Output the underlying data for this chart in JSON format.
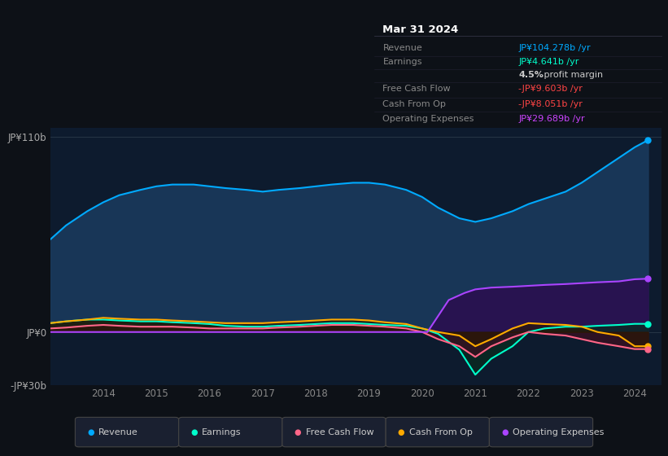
{
  "background_color": "#0d1117",
  "plot_bg_color": "#0d1b2e",
  "title_box": {
    "date": "Mar 31 2024",
    "rows": [
      {
        "label": "Revenue",
        "value": "JP¥104.278b /yr",
        "value_color": "#00aaff"
      },
      {
        "label": "Earnings",
        "value": "JP¥4.641b /yr",
        "value_color": "#00ffcc"
      },
      {
        "label": "",
        "value": "4.5% profit margin",
        "value_color": "#cccccc",
        "bold_prefix": "4.5%"
      },
      {
        "label": "Free Cash Flow",
        "value": "-JP¥9.603b /yr",
        "value_color": "#ff4444"
      },
      {
        "label": "Cash From Op",
        "value": "-JP¥8.051b /yr",
        "value_color": "#ff4444"
      },
      {
        "label": "Operating Expenses",
        "value": "JP¥29.689b /yr",
        "value_color": "#cc44ff"
      }
    ]
  },
  "ylim": [
    -30,
    115
  ],
  "yticks": [
    110,
    0,
    -30
  ],
  "ytick_labels": [
    "JP¥110b",
    "JP¥0",
    "-JP¥30b"
  ],
  "xtick_years": [
    2014,
    2015,
    2016,
    2017,
    2018,
    2019,
    2020,
    2021,
    2022,
    2023,
    2024
  ],
  "legend": [
    {
      "label": "Revenue",
      "color": "#00aaff"
    },
    {
      "label": "Earnings",
      "color": "#00ffcc"
    },
    {
      "label": "Free Cash Flow",
      "color": "#ff6688"
    },
    {
      "label": "Cash From Op",
      "color": "#ffaa00"
    },
    {
      "label": "Operating Expenses",
      "color": "#aa44ff"
    }
  ],
  "revenue": {
    "x": [
      2013.0,
      2013.3,
      2013.7,
      2014.0,
      2014.3,
      2014.7,
      2015.0,
      2015.3,
      2015.7,
      2016.0,
      2016.3,
      2016.7,
      2017.0,
      2017.3,
      2017.7,
      2018.0,
      2018.3,
      2018.7,
      2019.0,
      2019.3,
      2019.7,
      2020.0,
      2020.3,
      2020.7,
      2021.0,
      2021.3,
      2021.7,
      2022.0,
      2022.3,
      2022.7,
      2023.0,
      2023.3,
      2023.7,
      2024.0,
      2024.25
    ],
    "y": [
      52,
      60,
      68,
      73,
      77,
      80,
      82,
      83,
      83,
      82,
      81,
      80,
      79,
      80,
      81,
      82,
      83,
      84,
      84,
      83,
      80,
      76,
      70,
      64,
      62,
      64,
      68,
      72,
      75,
      79,
      84,
      90,
      98,
      104,
      108
    ],
    "color": "#00aaff",
    "fill_color": "#1a3a5c",
    "linewidth": 1.5
  },
  "earnings": {
    "x": [
      2013.0,
      2013.3,
      2013.7,
      2014.0,
      2014.3,
      2014.7,
      2015.0,
      2015.3,
      2015.7,
      2016.0,
      2016.3,
      2016.7,
      2017.0,
      2017.3,
      2017.7,
      2018.0,
      2018.3,
      2018.7,
      2019.0,
      2019.3,
      2019.7,
      2020.0,
      2020.3,
      2020.7,
      2021.0,
      2021.3,
      2021.7,
      2022.0,
      2022.3,
      2022.7,
      2023.0,
      2023.3,
      2023.7,
      2024.0,
      2024.25
    ],
    "y": [
      5,
      6,
      7,
      7,
      6.5,
      6,
      6,
      5.5,
      5,
      4.5,
      3.5,
      3,
      3,
      3.5,
      4,
      4.5,
      5,
      5,
      4.5,
      4,
      3.5,
      2,
      -1,
      -10,
      -24,
      -15,
      -8,
      0,
      2,
      3,
      3,
      3.5,
      4,
      4.6,
      4.6
    ],
    "color": "#00ffcc",
    "fill_color": "#0a2a20",
    "linewidth": 1.5
  },
  "free_cash_flow": {
    "x": [
      2013.0,
      2013.3,
      2013.7,
      2014.0,
      2014.3,
      2014.7,
      2015.0,
      2015.3,
      2015.7,
      2016.0,
      2016.3,
      2016.7,
      2017.0,
      2017.3,
      2017.7,
      2018.0,
      2018.3,
      2018.7,
      2019.0,
      2019.3,
      2019.7,
      2020.0,
      2020.3,
      2020.7,
      2021.0,
      2021.3,
      2021.7,
      2022.0,
      2022.3,
      2022.7,
      2023.0,
      2023.3,
      2023.7,
      2024.0,
      2024.25
    ],
    "y": [
      2,
      2.5,
      3.5,
      4,
      3.5,
      3,
      3,
      3,
      2.5,
      2,
      2,
      2,
      2,
      2.5,
      3,
      3.5,
      4,
      4,
      3.5,
      3,
      2,
      0,
      -4,
      -8,
      -14,
      -8,
      -3,
      0,
      -1,
      -2,
      -4,
      -6,
      -8,
      -9.6,
      -9.6
    ],
    "color": "#ff6688",
    "fill_color": "#3a1020",
    "linewidth": 1.5
  },
  "cash_from_op": {
    "x": [
      2013.0,
      2013.3,
      2013.7,
      2014.0,
      2014.3,
      2014.7,
      2015.0,
      2015.3,
      2015.7,
      2016.0,
      2016.3,
      2016.7,
      2017.0,
      2017.3,
      2017.7,
      2018.0,
      2018.3,
      2018.7,
      2019.0,
      2019.3,
      2019.7,
      2020.0,
      2020.3,
      2020.7,
      2021.0,
      2021.3,
      2021.7,
      2022.0,
      2022.3,
      2022.7,
      2023.0,
      2023.3,
      2023.7,
      2024.0,
      2024.25
    ],
    "y": [
      5,
      6,
      7,
      8,
      7.5,
      7,
      7,
      6.5,
      6,
      5.5,
      5,
      5,
      5,
      5.5,
      6,
      6.5,
      7,
      7,
      6.5,
      5.5,
      4.5,
      2,
      0,
      -2,
      -8,
      -4,
      2,
      5,
      4.5,
      4,
      3,
      0,
      -2,
      -8.0,
      -8.0
    ],
    "color": "#ffaa00",
    "fill_color": "#2a1800",
    "linewidth": 1.5
  },
  "operating_expenses": {
    "x": [
      2013.0,
      2013.3,
      2013.7,
      2014.0,
      2014.3,
      2014.7,
      2015.0,
      2015.3,
      2015.7,
      2016.0,
      2016.3,
      2016.7,
      2017.0,
      2017.3,
      2017.7,
      2018.0,
      2018.3,
      2018.7,
      2019.0,
      2019.3,
      2019.7,
      2020.0,
      2020.1,
      2020.5,
      2020.8,
      2021.0,
      2021.3,
      2021.7,
      2022.0,
      2022.3,
      2022.7,
      2023.0,
      2023.3,
      2023.7,
      2024.0,
      2024.25
    ],
    "y": [
      0,
      0,
      0,
      0,
      0,
      0,
      0,
      0,
      0,
      0,
      0,
      0,
      0,
      0,
      0,
      0,
      0,
      0,
      0,
      0,
      0,
      0,
      0,
      18,
      22,
      24,
      25,
      25.5,
      26,
      26.5,
      27,
      27.5,
      28,
      28.5,
      29.7,
      30
    ],
    "color": "#aa44ff",
    "fill_color": "#2a1050",
    "linewidth": 1.5
  }
}
